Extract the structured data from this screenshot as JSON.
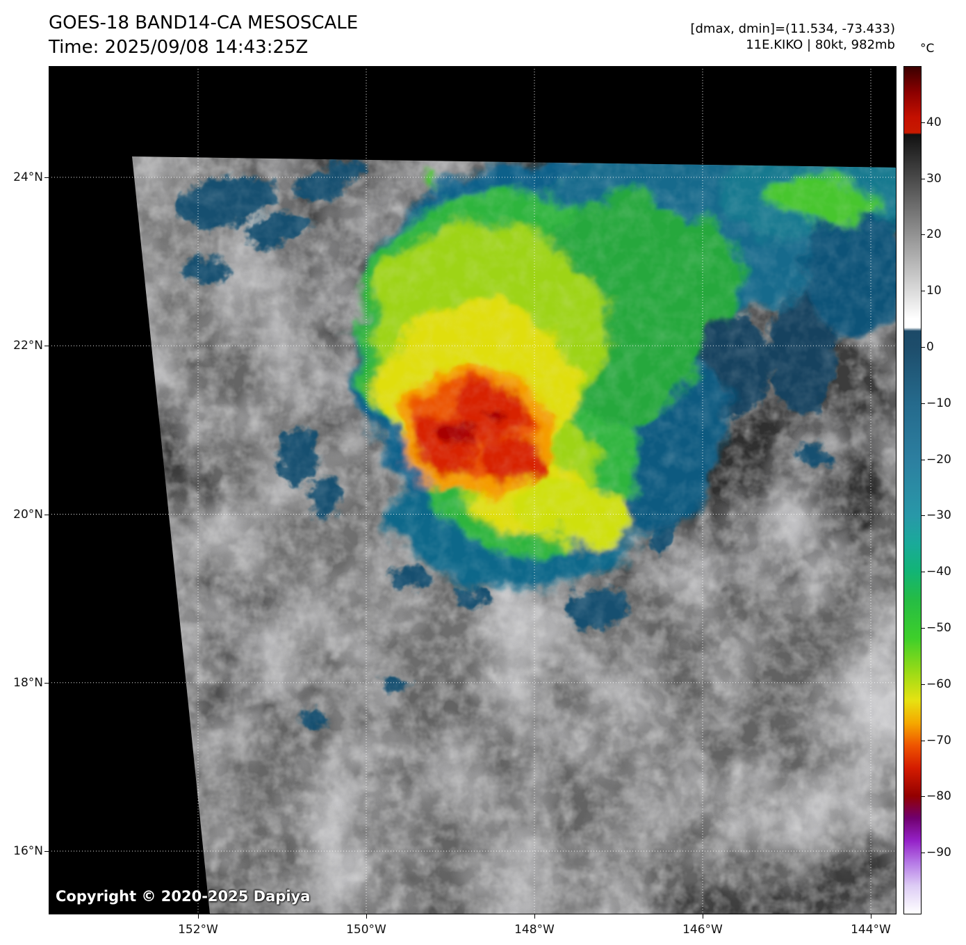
{
  "header": {
    "title": "GOES-18 BAND14-CA MESOSCALE",
    "time_line": "Time: 2025/09/08 14:43:25Z",
    "dmax_dmin_line": "[dmax, dmin]=(11.534, -73.433)",
    "storm_line": "11E.KIKO | 80kt, 982mb"
  },
  "colorbar": {
    "unit_label": "°C",
    "ticks": [
      {
        "label": "40",
        "value": 40
      },
      {
        "label": "30",
        "value": 30
      },
      {
        "label": "20",
        "value": 20
      },
      {
        "label": "10",
        "value": 10
      },
      {
        "label": "0",
        "value": 0
      },
      {
        "label": "−10",
        "value": -10
      },
      {
        "label": "−20",
        "value": -20
      },
      {
        "label": "−30",
        "value": -30
      },
      {
        "label": "−40",
        "value": -40
      },
      {
        "label": "−50",
        "value": -50
      },
      {
        "label": "−60",
        "value": -60
      },
      {
        "label": "−70",
        "value": -70
      },
      {
        "label": "−80",
        "value": -80
      },
      {
        "label": "−90",
        "value": -90
      }
    ]
  },
  "map": {
    "lat_ticks": [
      {
        "label": "24°N",
        "value": 24
      },
      {
        "label": "22°N",
        "value": 22
      },
      {
        "label": "20°N",
        "value": 20
      },
      {
        "label": "18°N",
        "value": 18
      },
      {
        "label": "16°N",
        "value": 16
      }
    ],
    "lon_ticks": [
      {
        "label": "152°W",
        "value": -152
      },
      {
        "label": "150°W",
        "value": -150
      },
      {
        "label": "148°W",
        "value": -148
      },
      {
        "label": "146°W",
        "value": -146
      },
      {
        "label": "144°W",
        "value": -144
      }
    ],
    "copyright": "Copyright © 2020-2025 Dapiya"
  }
}
